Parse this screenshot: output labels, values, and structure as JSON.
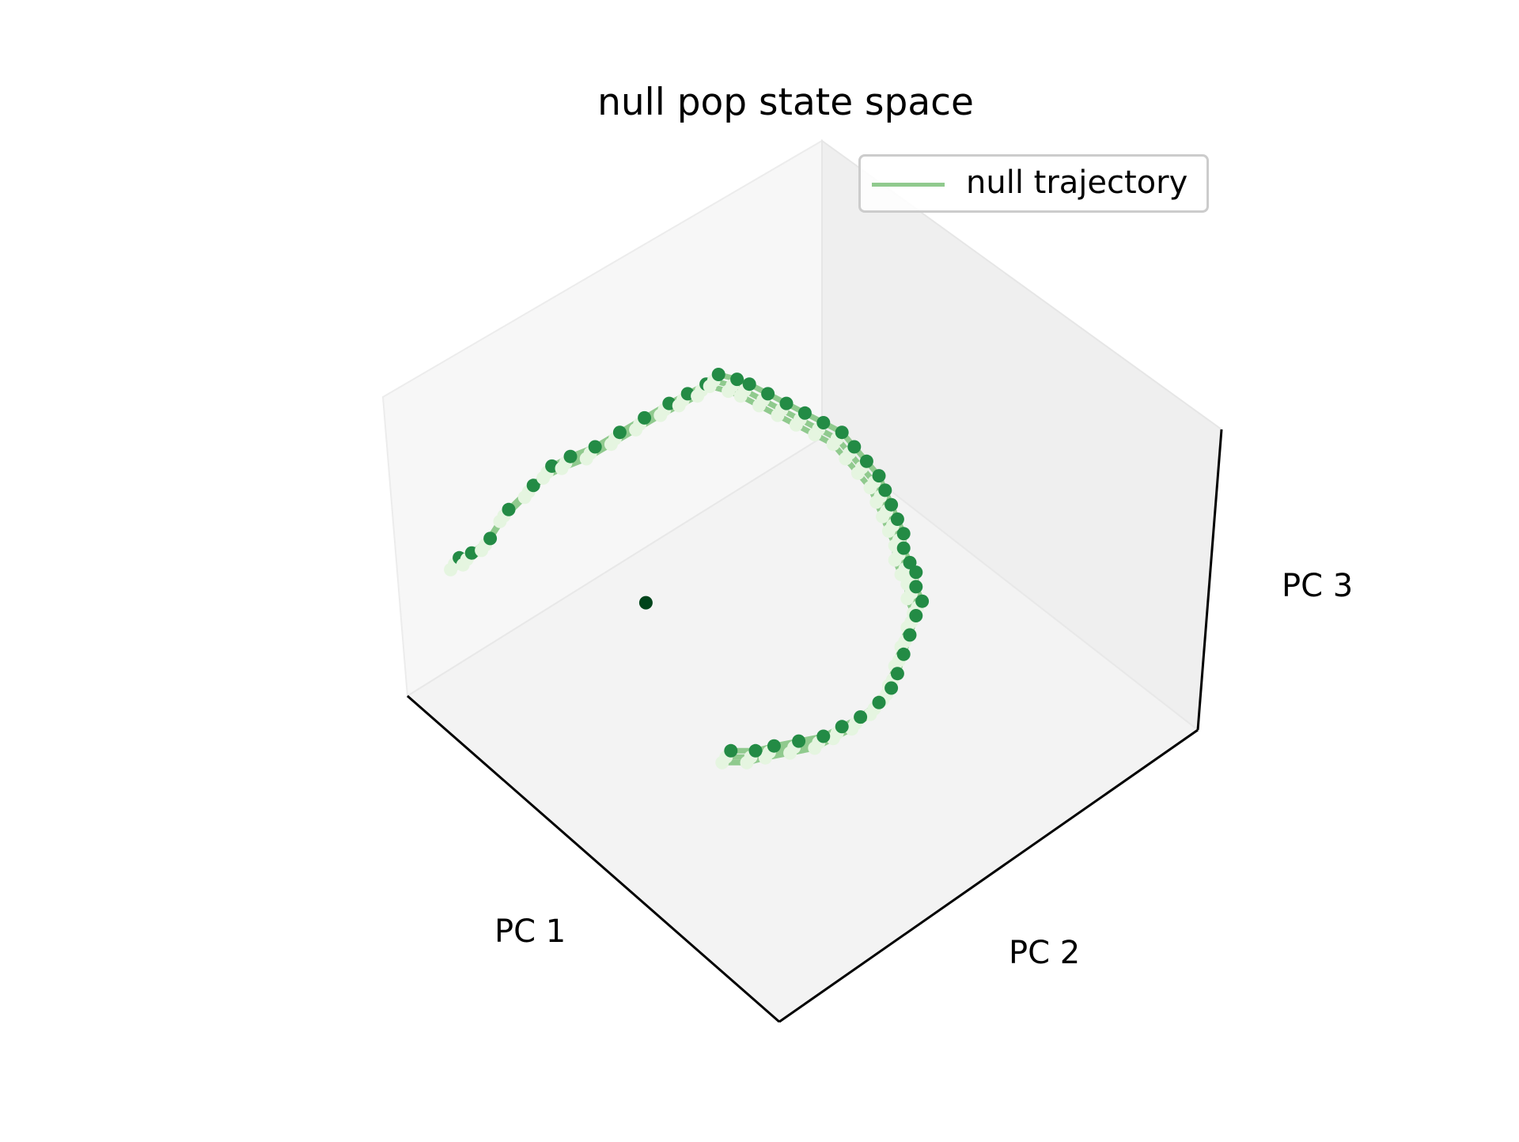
{
  "chart_data": {
    "type": "scatter",
    "projection": "3d",
    "title": "null pop state space",
    "xlabel": "PC 1",
    "ylabel": "PC 2",
    "zlabel": "PC 3",
    "legend": {
      "entries": [
        "null trajectory"
      ],
      "placement": "top-right"
    },
    "colors": {
      "trajectory": "#90ca8e",
      "pane_light": "#f7f7f7",
      "pane_dark": "#eeeeee",
      "point_colormap": [
        "#e5f5e0",
        "#a1d99b",
        "#41ab5d",
        "#238b45",
        "#006d2c",
        "#00441b"
      ]
    },
    "grid": false,
    "ticks_visible": false,
    "series": [
      {
        "name": "null trajectory",
        "points": [
          [
            0.07,
            0.47
          ],
          [
            0.09,
            0.48
          ],
          [
            0.12,
            0.51
          ],
          [
            0.15,
            0.57
          ],
          [
            0.19,
            0.62
          ],
          [
            0.22,
            0.66
          ],
          [
            0.25,
            0.68
          ],
          [
            0.29,
            0.7
          ],
          [
            0.33,
            0.73
          ],
          [
            0.37,
            0.76
          ],
          [
            0.41,
            0.79
          ],
          [
            0.44,
            0.81
          ],
          [
            0.47,
            0.83
          ],
          [
            0.49,
            0.85
          ],
          [
            0.52,
            0.84
          ],
          [
            0.54,
            0.83
          ],
          [
            0.57,
            0.81
          ],
          [
            0.6,
            0.79
          ],
          [
            0.63,
            0.77
          ],
          [
            0.66,
            0.75
          ],
          [
            0.69,
            0.73
          ],
          [
            0.71,
            0.7
          ],
          [
            0.73,
            0.67
          ],
          [
            0.75,
            0.64
          ],
          [
            0.76,
            0.61
          ],
          [
            0.77,
            0.58
          ],
          [
            0.78,
            0.55
          ],
          [
            0.79,
            0.52
          ],
          [
            0.79,
            0.49
          ],
          [
            0.8,
            0.46
          ],
          [
            0.81,
            0.44
          ],
          [
            0.81,
            0.41
          ],
          [
            0.82,
            0.38
          ],
          [
            0.81,
            0.35
          ],
          [
            0.8,
            0.31
          ],
          [
            0.79,
            0.27
          ],
          [
            0.78,
            0.23
          ],
          [
            0.77,
            0.2
          ],
          [
            0.75,
            0.17
          ],
          [
            0.72,
            0.14
          ],
          [
            0.69,
            0.12
          ],
          [
            0.66,
            0.1
          ],
          [
            0.62,
            0.09
          ],
          [
            0.58,
            0.08
          ],
          [
            0.55,
            0.07
          ],
          [
            0.51,
            0.07
          ]
        ]
      }
    ],
    "isolated_point": [
      0.38,
      0.39
    ]
  }
}
